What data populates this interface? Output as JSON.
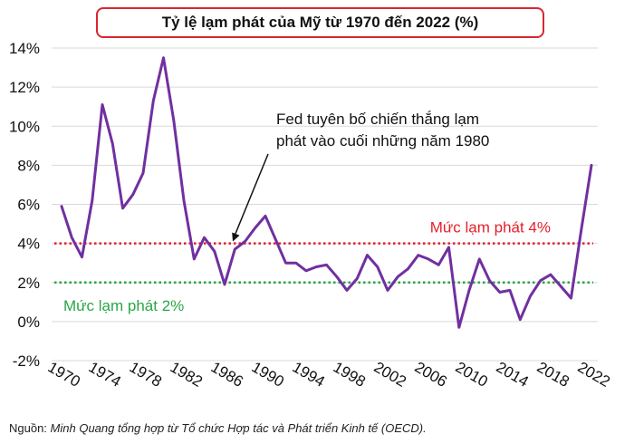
{
  "chart_data": {
    "type": "line",
    "title": "Tỷ lệ lạm phát của Mỹ từ 1970 đến 2022 (%)",
    "xlabel": "",
    "ylabel": "",
    "x": [
      1970,
      1971,
      1972,
      1973,
      1974,
      1975,
      1976,
      1977,
      1978,
      1979,
      1980,
      1981,
      1982,
      1983,
      1984,
      1985,
      1986,
      1987,
      1988,
      1989,
      1990,
      1991,
      1992,
      1993,
      1994,
      1995,
      1996,
      1997,
      1998,
      1999,
      2000,
      2001,
      2002,
      2003,
      2004,
      2005,
      2006,
      2007,
      2008,
      2009,
      2010,
      2011,
      2012,
      2013,
      2014,
      2015,
      2016,
      2017,
      2018,
      2019,
      2020,
      2021,
      2022
    ],
    "series": [
      {
        "name": "Tỷ lệ lạm phát",
        "color": "#7030a0",
        "values": [
          5.9,
          4.3,
          3.3,
          6.2,
          11.1,
          9.1,
          5.8,
          6.5,
          7.6,
          11.3,
          13.5,
          10.3,
          6.2,
          3.2,
          4.3,
          3.6,
          1.9,
          3.7,
          4.1,
          4.8,
          5.4,
          4.2,
          3.0,
          3.0,
          2.6,
          2.8,
          2.9,
          2.3,
          1.6,
          2.2,
          3.4,
          2.8,
          1.6,
          2.3,
          2.7,
          3.4,
          3.2,
          2.9,
          3.8,
          -0.3,
          1.6,
          3.2,
          2.1,
          1.5,
          1.6,
          0.1,
          1.3,
          2.1,
          2.4,
          1.8,
          1.2,
          4.7,
          8.0
        ]
      }
    ],
    "x_tick_labels": [
      "1970",
      "1974",
      "1978",
      "1982",
      "1986",
      "1990",
      "1994",
      "1998",
      "2002",
      "2006",
      "2010",
      "2014",
      "2018",
      "2022"
    ],
    "y_ticks": [
      -2,
      0,
      2,
      4,
      6,
      8,
      10,
      12,
      14
    ],
    "y_tick_labels": [
      "-2%",
      "0%",
      "2%",
      "4%",
      "6%",
      "8%",
      "10%",
      "12%",
      "14%"
    ],
    "ylim": [
      -2,
      14
    ],
    "xlim": [
      1970,
      2022
    ],
    "grid": "horizontal",
    "reference_lines": [
      {
        "name": "ref-line-4pct",
        "value": 4,
        "label": "Mức lạm phát 4%",
        "color": "#e5202a"
      },
      {
        "name": "ref-line-2pct",
        "value": 2,
        "label": "Mức lạm phát 2%",
        "color": "#2aa646"
      }
    ],
    "annotation": {
      "line1": "Fed tuyên bố chiến thắng lạm",
      "line2": "phát vào cuối những năm 1980",
      "arrow_target_x": 1986.8,
      "arrow_target_y": 4.1
    }
  },
  "footer": {
    "prefix": "Nguồn: ",
    "source": "Minh Quang tổng hợp từ Tổ chức Hợp tác và Phát triển Kinh tế (OECD)."
  },
  "colors": {
    "grid": "#d9d9d9",
    "title_border": "#d9262e"
  }
}
